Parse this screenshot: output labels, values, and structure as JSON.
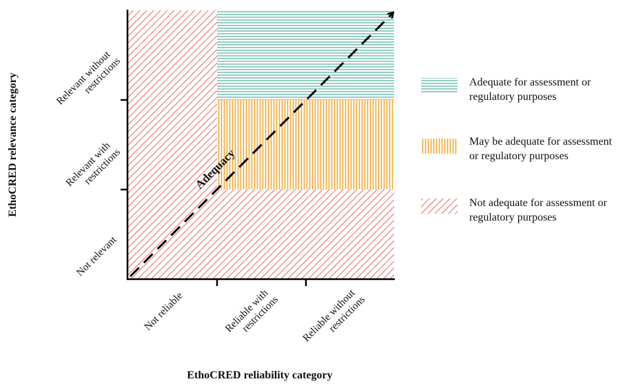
{
  "diagram": {
    "x_axis": {
      "title": "EthoCRED reliability category",
      "categories": [
        {
          "lines": [
            "Not reliable"
          ]
        },
        {
          "lines": [
            "Reliable with",
            "restrictions"
          ]
        },
        {
          "lines": [
            "Reliable without",
            "restrictions"
          ]
        }
      ]
    },
    "y_axis": {
      "title": "EthoCRED relevance category",
      "categories": [
        {
          "lines": [
            "Not relevant"
          ]
        },
        {
          "lines": [
            "Relevant with",
            "restrictions"
          ]
        },
        {
          "lines": [
            "Relevant without",
            "restrictions"
          ]
        }
      ]
    },
    "arrow_label": "Adequacy",
    "colors": {
      "adequate": "#3aa892",
      "may_be_adequate": "#f0a830",
      "not_adequate": "#e0403a",
      "axis": "#000000"
    },
    "legend": [
      {
        "key": "adequate",
        "pattern": "horizontal-lines",
        "lines": [
          "Adequate for assessment or",
          "regulatory purposes"
        ]
      },
      {
        "key": "may_be_adequate",
        "pattern": "vertical-lines",
        "lines": [
          "May be adequate for assessment",
          "or regulatory purposes"
        ]
      },
      {
        "key": "not_adequate",
        "pattern": "diagonal-lines",
        "lines": [
          "Not adequate for assessment or",
          "regulatory purposes"
        ]
      }
    ]
  }
}
